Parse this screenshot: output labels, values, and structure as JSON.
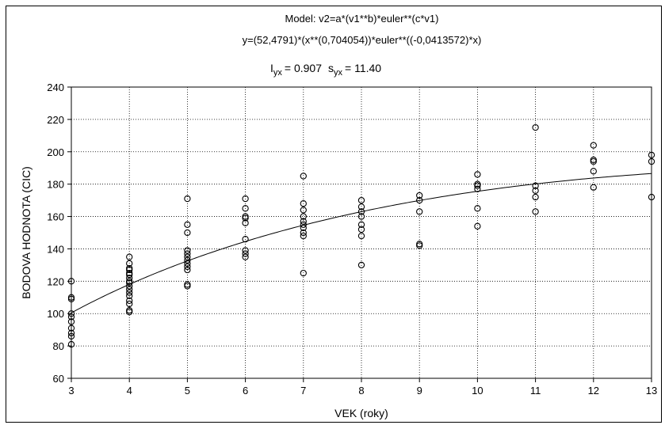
{
  "chart_data": {
    "type": "scatter",
    "title_lines": [
      "Model: v2=a*(v1**b)*euler**(c*v1)",
      "y=(52,4791)*(x**(0,704054))*euler**((-0,0413572)*x)"
    ],
    "stats": {
      "r_symbol": "I",
      "r_subscript": "yx",
      "r_value": "= 0.907",
      "s_symbol": "s",
      "s_subscript": "yx",
      "s_value": "= 11.40"
    },
    "xlabel": "VEK (roky)",
    "ylabel": "BODOVA HODNOTA (CIC)",
    "xlim": [
      3,
      13
    ],
    "ylim": [
      60,
      240
    ],
    "x_ticks": [
      3,
      4,
      5,
      6,
      7,
      8,
      9,
      10,
      11,
      12,
      13
    ],
    "y_ticks": [
      60,
      80,
      100,
      120,
      140,
      160,
      180,
      200,
      220,
      240
    ],
    "grid": true,
    "model": {
      "a": 52.4791,
      "b": 0.704054,
      "c": -0.0413572
    },
    "points": [
      [
        3,
        81
      ],
      [
        3,
        86
      ],
      [
        3,
        88
      ],
      [
        3,
        91
      ],
      [
        3,
        95
      ],
      [
        3,
        98
      ],
      [
        3,
        100
      ],
      [
        3,
        109
      ],
      [
        3,
        110
      ],
      [
        3,
        120
      ],
      [
        4,
        101
      ],
      [
        4,
        102
      ],
      [
        4,
        106
      ],
      [
        4,
        108
      ],
      [
        4,
        111
      ],
      [
        4,
        113
      ],
      [
        4,
        115
      ],
      [
        4,
        117
      ],
      [
        4,
        119
      ],
      [
        4,
        120
      ],
      [
        4,
        122
      ],
      [
        4,
        124
      ],
      [
        4,
        125
      ],
      [
        4,
        127
      ],
      [
        4,
        128
      ],
      [
        4,
        131
      ],
      [
        4,
        135
      ],
      [
        5,
        117
      ],
      [
        5,
        118
      ],
      [
        5,
        127
      ],
      [
        5,
        129
      ],
      [
        5,
        131
      ],
      [
        5,
        133
      ],
      [
        5,
        135
      ],
      [
        5,
        137
      ],
      [
        5,
        139
      ],
      [
        5,
        150
      ],
      [
        5,
        155
      ],
      [
        5,
        171
      ],
      [
        6,
        135
      ],
      [
        6,
        137
      ],
      [
        6,
        139
      ],
      [
        6,
        146
      ],
      [
        6,
        156
      ],
      [
        6,
        159
      ],
      [
        6,
        160
      ],
      [
        6,
        165
      ],
      [
        6,
        171
      ],
      [
        7,
        125
      ],
      [
        7,
        148
      ],
      [
        7,
        150
      ],
      [
        7,
        153
      ],
      [
        7,
        155
      ],
      [
        7,
        157
      ],
      [
        7,
        160
      ],
      [
        7,
        164
      ],
      [
        7,
        168
      ],
      [
        7,
        185
      ],
      [
        8,
        130
      ],
      [
        8,
        148
      ],
      [
        8,
        152
      ],
      [
        8,
        155
      ],
      [
        8,
        160
      ],
      [
        8,
        163
      ],
      [
        8,
        166
      ],
      [
        8,
        170
      ],
      [
        9,
        142
      ],
      [
        9,
        143
      ],
      [
        9,
        163
      ],
      [
        9,
        170
      ],
      [
        9,
        173
      ],
      [
        10,
        154
      ],
      [
        10,
        165
      ],
      [
        10,
        177
      ],
      [
        10,
        179
      ],
      [
        10,
        180
      ],
      [
        10,
        186
      ],
      [
        11,
        163
      ],
      [
        11,
        172
      ],
      [
        11,
        176
      ],
      [
        11,
        179
      ],
      [
        11,
        215
      ],
      [
        12,
        178
      ],
      [
        12,
        188
      ],
      [
        12,
        194
      ],
      [
        12,
        195
      ],
      [
        12,
        204
      ],
      [
        13,
        172
      ],
      [
        13,
        194
      ],
      [
        13,
        198
      ]
    ]
  }
}
